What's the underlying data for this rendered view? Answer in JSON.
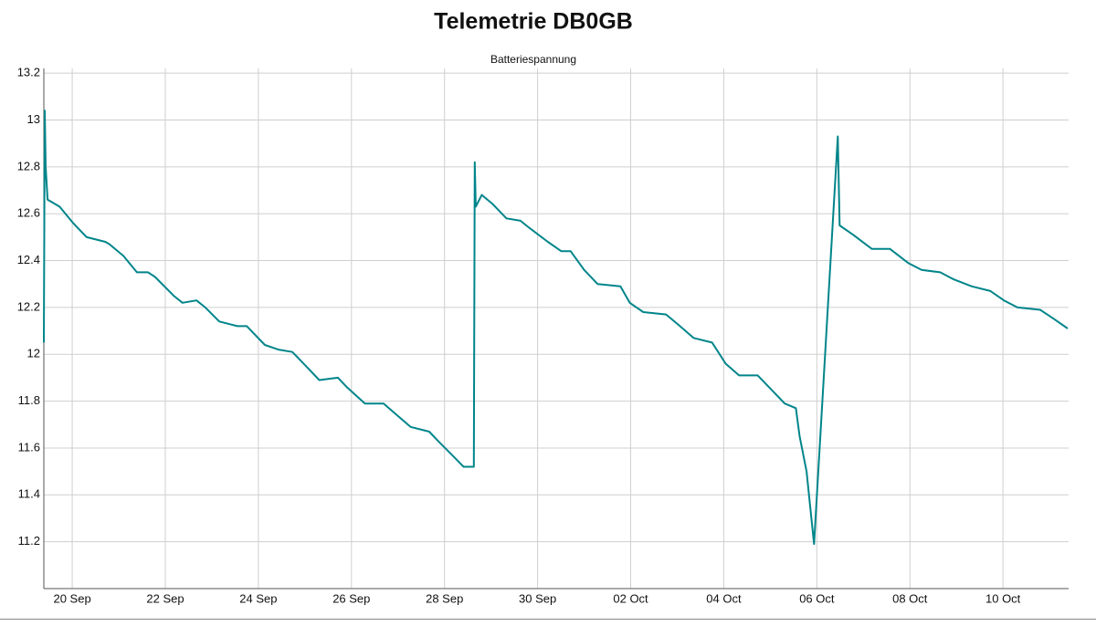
{
  "chart_data": {
    "type": "line",
    "title": "Telemetrie DB0GB",
    "subtitle": "Batteriespannung",
    "color": "#00858a",
    "grid": true,
    "x": [
      19.39,
      19.41,
      19.43,
      19.47,
      19.73,
      20.02,
      20.31,
      20.71,
      20.8,
      21.1,
      21.39,
      21.63,
      21.78,
      22.18,
      22.37,
      22.67,
      22.86,
      23.16,
      23.55,
      23.75,
      24.14,
      24.43,
      24.73,
      25.02,
      25.31,
      25.71,
      25.9,
      26.29,
      26.69,
      26.98,
      27.27,
      27.67,
      27.86,
      28.16,
      28.41,
      28.63,
      28.65,
      28.67,
      28.8,
      29.04,
      29.33,
      29.63,
      29.82,
      30.22,
      30.51,
      30.71,
      31.0,
      31.29,
      31.78,
      31.98,
      32.27,
      32.76,
      33.06,
      33.35,
      33.75,
      34.04,
      34.33,
      34.73,
      35.02,
      35.31,
      35.55,
      35.63,
      35.78,
      35.94,
      36.45,
      36.49,
      36.78,
      37.18,
      37.57,
      37.96,
      38.25,
      38.65,
      38.94,
      39.33,
      39.73,
      40.02,
      40.31,
      40.8,
      41.1,
      41.39
    ],
    "values": [
      12.05,
      13.04,
      12.8,
      12.66,
      12.63,
      12.56,
      12.5,
      12.48,
      12.47,
      12.42,
      12.35,
      12.35,
      12.33,
      12.25,
      12.22,
      12.23,
      12.2,
      12.14,
      12.12,
      12.12,
      12.04,
      12.02,
      12.01,
      11.95,
      11.89,
      11.9,
      11.86,
      11.79,
      11.79,
      11.74,
      11.69,
      11.67,
      11.63,
      11.57,
      11.52,
      11.52,
      12.82,
      12.63,
      12.68,
      12.64,
      12.58,
      12.57,
      12.54,
      12.48,
      12.44,
      12.44,
      12.36,
      12.3,
      12.29,
      12.22,
      12.18,
      12.17,
      12.12,
      12.07,
      12.05,
      11.96,
      11.91,
      11.91,
      11.85,
      11.79,
      11.77,
      11.65,
      11.5,
      11.19,
      12.93,
      12.55,
      12.51,
      12.45,
      12.45,
      12.39,
      12.36,
      12.35,
      12.32,
      12.29,
      12.27,
      12.23,
      12.2,
      12.19,
      12.15,
      12.11
    ],
    "xlim": [
      19.39,
      41.41
    ],
    "xticks": [
      {
        "value": 20,
        "label": "20 Sep"
      },
      {
        "value": 22,
        "label": "22 Sep"
      },
      {
        "value": 24,
        "label": "24 Sep"
      },
      {
        "value": 26,
        "label": "26 Sep"
      },
      {
        "value": 28,
        "label": "28 Sep"
      },
      {
        "value": 30,
        "label": "30 Sep"
      },
      {
        "value": 32,
        "label": "02 Oct"
      },
      {
        "value": 34,
        "label": "04 Oct"
      },
      {
        "value": 36,
        "label": "06 Oct"
      },
      {
        "value": 38,
        "label": "08 Oct"
      },
      {
        "value": 40,
        "label": "10 Oct"
      }
    ],
    "ylim": [
      11.0,
      13.22
    ],
    "yticks": [
      11.2,
      11.4,
      11.6,
      11.8,
      12,
      12.2,
      12.4,
      12.6,
      12.8,
      13,
      13.2
    ]
  }
}
